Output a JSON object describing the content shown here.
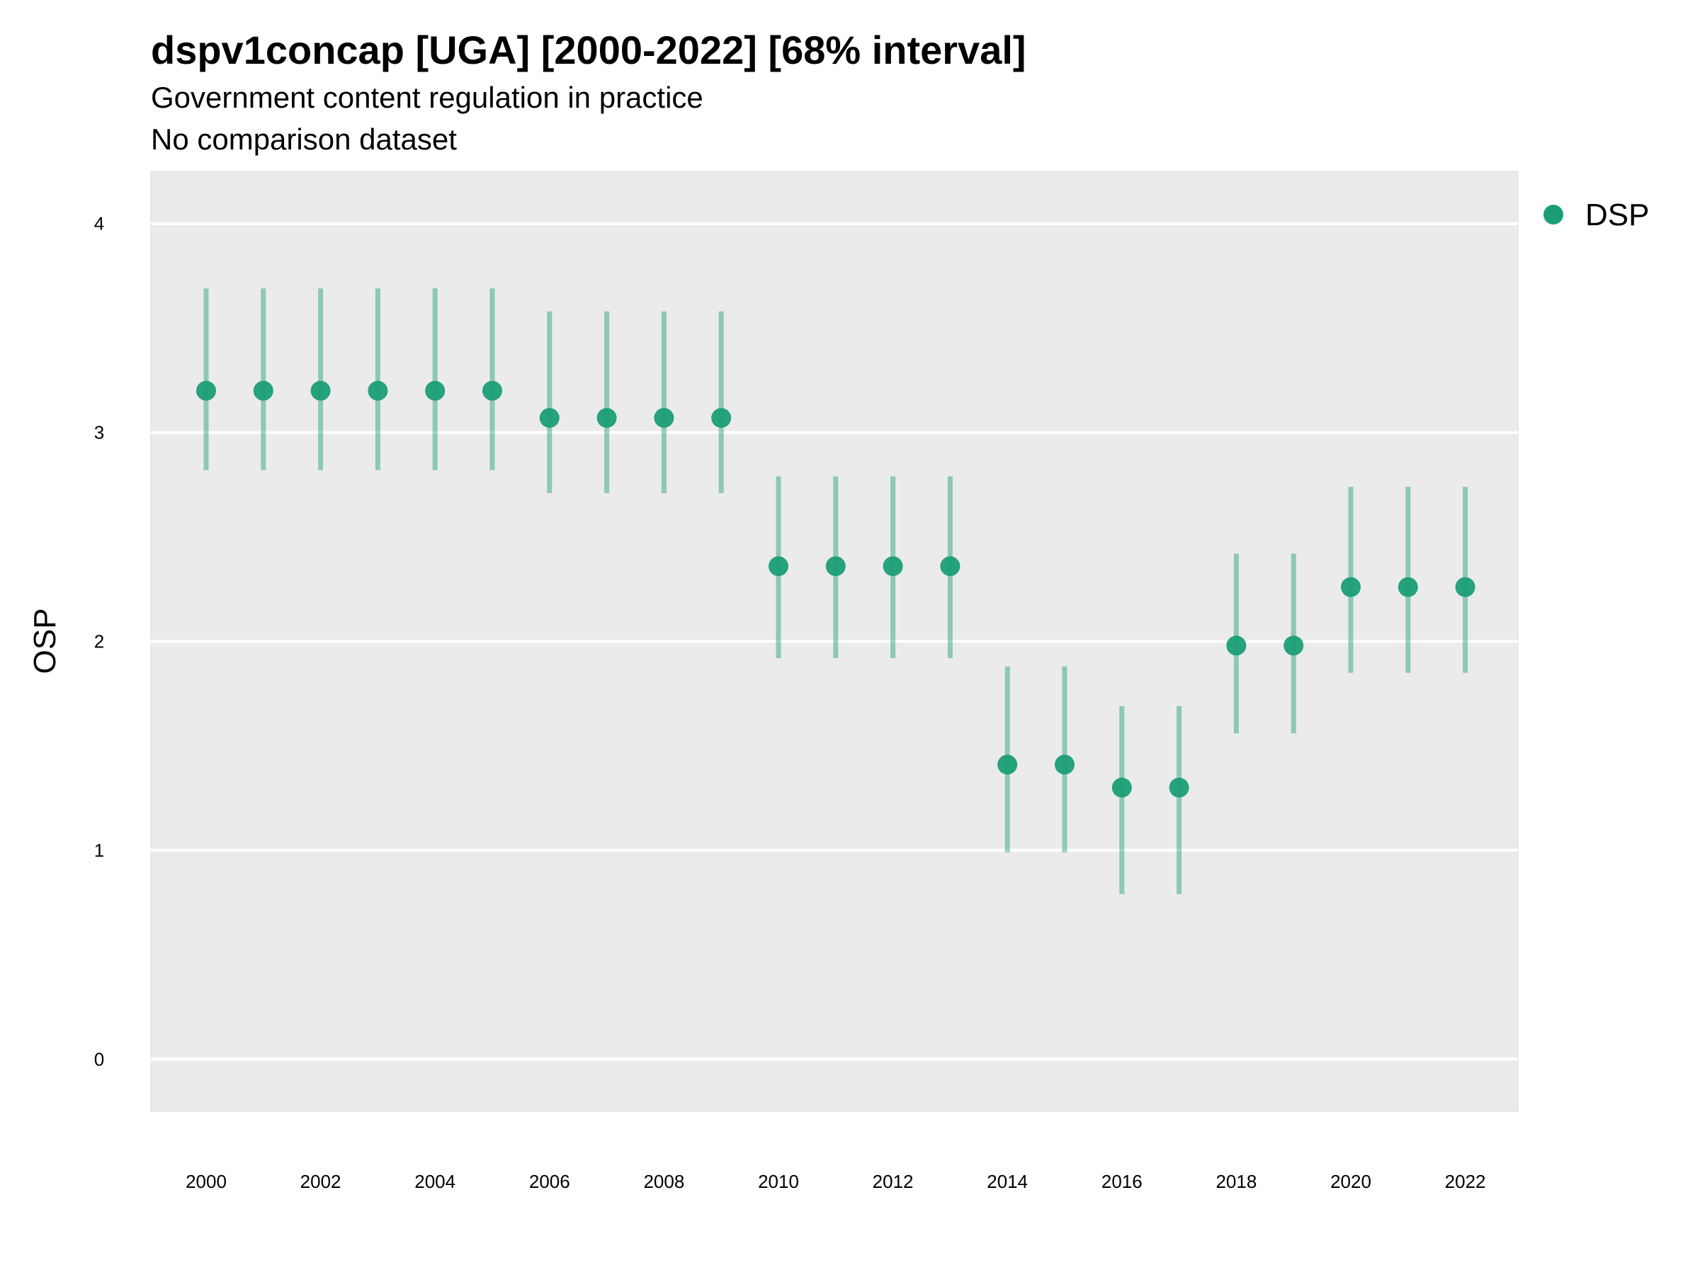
{
  "chart_data": {
    "type": "scatter",
    "title": "dspv1concap [UGA] [2000-2022] [68% interval]",
    "subtitle": "Government content regulation in practice",
    "caption": "No comparison dataset",
    "xlabel": "",
    "ylabel": "OSP",
    "ylim": [
      -0.25,
      4.25
    ],
    "yticks": [
      0,
      1,
      2,
      3,
      4
    ],
    "xticks": [
      2000,
      2002,
      2004,
      2006,
      2008,
      2010,
      2012,
      2014,
      2016,
      2018,
      2020,
      2022
    ],
    "grid": "horizontal",
    "legend_position": "top-right",
    "series": [
      {
        "name": "DSP",
        "color": "#1b9e77",
        "x": [
          2000,
          2001,
          2002,
          2003,
          2004,
          2005,
          2006,
          2007,
          2008,
          2009,
          2010,
          2011,
          2012,
          2013,
          2014,
          2015,
          2016,
          2017,
          2018,
          2019,
          2020,
          2021,
          2022
        ],
        "y": [
          3.2,
          3.2,
          3.2,
          3.2,
          3.2,
          3.2,
          3.07,
          3.07,
          3.07,
          3.07,
          2.36,
          2.36,
          2.36,
          2.36,
          1.41,
          1.41,
          1.3,
          1.3,
          1.98,
          1.98,
          2.26,
          2.26,
          2.26
        ],
        "lower": [
          2.82,
          2.82,
          2.82,
          2.82,
          2.82,
          2.82,
          2.71,
          2.71,
          2.71,
          2.71,
          1.92,
          1.92,
          1.92,
          1.92,
          0.99,
          0.99,
          0.79,
          0.79,
          1.56,
          1.56,
          1.85,
          1.85,
          1.85
        ],
        "upper": [
          3.69,
          3.69,
          3.69,
          3.69,
          3.69,
          3.69,
          3.58,
          3.58,
          3.58,
          3.58,
          2.79,
          2.79,
          2.79,
          2.79,
          1.88,
          1.88,
          1.69,
          1.69,
          2.42,
          2.42,
          2.74,
          2.74,
          2.74
        ]
      }
    ]
  }
}
